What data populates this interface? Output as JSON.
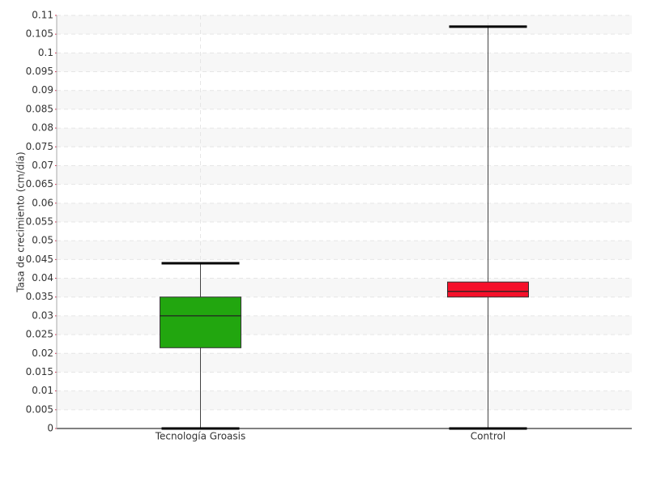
{
  "chart_data": {
    "type": "box",
    "y_label": "Tasa de crecimiento (cm/día)",
    "categories": [
      "Tecnología Groasis",
      "Control"
    ],
    "boxes": [
      {
        "min": 0,
        "q1": 0.0215,
        "median": 0.03,
        "q3": 0.035,
        "max": 0.044,
        "color": "#22a60f"
      },
      {
        "min": 0,
        "q1": 0.035,
        "median": 0.0365,
        "q3": 0.039,
        "max": 0.107,
        "color": "#f5102a"
      }
    ],
    "ylim": [
      0,
      0.11
    ],
    "yticks": [
      0,
      0.005,
      0.01,
      0.015,
      0.02,
      0.025,
      0.03,
      0.035,
      0.04,
      0.045,
      0.05,
      0.055,
      0.06,
      0.065,
      0.07,
      0.075,
      0.08,
      0.085,
      0.09,
      0.095,
      0.1,
      0.105,
      0.11
    ],
    "grid": true
  }
}
